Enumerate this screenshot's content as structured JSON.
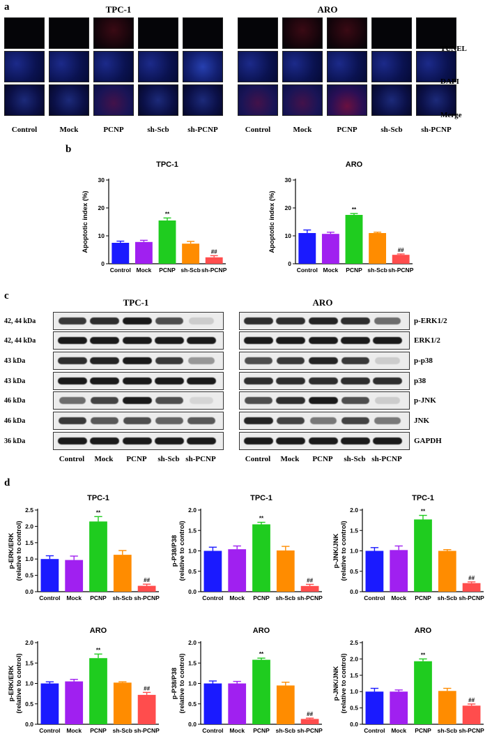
{
  "panel_a": {
    "letter": "a",
    "groups": [
      {
        "title": "TPC-1"
      },
      {
        "title": "ARO"
      }
    ],
    "rows": [
      "TUNEL",
      "DAPI",
      "Merge"
    ],
    "columns": [
      "Control",
      "Mock",
      "PCNP",
      "sh-Scb",
      "sh-PCNP"
    ]
  },
  "panel_b_letter": "b",
  "panel_c": {
    "letter": "c",
    "groups": [
      {
        "title": "TPC-1"
      },
      {
        "title": "ARO"
      }
    ],
    "sizes": [
      "42, 44 kDa",
      "42, 44 kDa",
      "43 kDa",
      "43 kDa",
      "46 kDa",
      "46 kDa",
      "36 kDa"
    ],
    "proteins": [
      "p-ERK1/2",
      "ERK1/2",
      "p-p38",
      "p38",
      "p-JNK",
      "JNK",
      "GAPDH"
    ],
    "columns": [
      "Control",
      "Mock",
      "PCNP",
      "sh-Scb",
      "sh-PCNP"
    ],
    "band_intensity": {
      "TPC-1": [
        [
          0.85,
          0.9,
          1.0,
          0.75,
          0.15
        ],
        [
          1,
          1,
          1,
          1,
          1
        ],
        [
          0.9,
          0.95,
          1.0,
          0.85,
          0.4
        ],
        [
          1,
          1,
          1,
          1,
          1
        ],
        [
          0.6,
          0.8,
          1.0,
          0.75,
          0.1
        ],
        [
          0.85,
          0.7,
          0.75,
          0.65,
          0.7
        ],
        [
          1,
          1,
          1,
          1,
          1
        ]
      ],
      "ARO": [
        [
          0.9,
          0.9,
          0.95,
          0.9,
          0.6
        ],
        [
          1,
          1,
          1,
          1,
          1
        ],
        [
          0.75,
          0.85,
          0.95,
          0.85,
          0.15
        ],
        [
          0.9,
          0.9,
          0.9,
          0.9,
          0.9
        ],
        [
          0.75,
          0.9,
          1.0,
          0.75,
          0.15
        ],
        [
          0.95,
          0.8,
          0.55,
          0.8,
          0.55
        ],
        [
          1,
          1,
          1,
          1,
          1
        ]
      ]
    }
  },
  "panel_d_letter": "d",
  "colors": {
    "Control": "#1a1aff",
    "Mock": "#a020f0",
    "PCNP": "#1fcc1f",
    "sh-Scb": "#ff8c00",
    "sh-PCNP": "#ff4d4d"
  },
  "chart_data": [
    {
      "type": "bar",
      "title": "TPC-1",
      "ylabel": "Apoptotic index (%)",
      "categories": [
        "Control",
        "Mock",
        "PCNP",
        "sh-Scb",
        "sh-PCNP"
      ],
      "values": [
        7.5,
        7.8,
        15.5,
        7.2,
        2.3
      ],
      "errors": [
        0.6,
        0.6,
        0.9,
        0.8,
        0.6
      ],
      "annotations": [
        "",
        "",
        "**",
        "",
        "##"
      ],
      "ylim": [
        0,
        30
      ],
      "yticks": [
        "0",
        "10",
        "20",
        "30"
      ]
    },
    {
      "type": "bar",
      "title": "ARO",
      "ylabel": "Apoptotic index (%)",
      "categories": [
        "Control",
        "Mock",
        "PCNP",
        "sh-Scb",
        "sh-PCNP"
      ],
      "values": [
        11.0,
        10.7,
        17.5,
        11.0,
        3.2
      ],
      "errors": [
        1.1,
        0.6,
        0.5,
        0.3,
        0.3
      ],
      "annotations": [
        "",
        "",
        "**",
        "",
        "##"
      ],
      "ylim": [
        0,
        30
      ],
      "yticks": [
        "0",
        "10",
        "20",
        "30"
      ]
    },
    {
      "type": "bar",
      "title": "TPC-1",
      "ylabel": "p-ERK/ERK (relative to control)",
      "categories": [
        "Control",
        "Mock",
        "PCNP",
        "sh-Scb",
        "sh-PCNP"
      ],
      "values": [
        1.0,
        0.97,
        2.15,
        1.13,
        0.18
      ],
      "errors": [
        0.1,
        0.12,
        0.15,
        0.13,
        0.05
      ],
      "annotations": [
        "",
        "",
        "**",
        "",
        "##"
      ],
      "ylim": [
        0,
        2.5
      ],
      "yticks": [
        "0.0",
        "0.5",
        "1.0",
        "1.5",
        "2.0",
        "2.5"
      ]
    },
    {
      "type": "bar",
      "title": "TPC-1",
      "ylabel": "p-P38/P38 (relative to control)",
      "categories": [
        "Control",
        "Mock",
        "PCNP",
        "sh-Scb",
        "sh-PCNP"
      ],
      "values": [
        1.0,
        1.04,
        1.65,
        1.01,
        0.14
      ],
      "errors": [
        0.09,
        0.08,
        0.05,
        0.1,
        0.04
      ],
      "annotations": [
        "",
        "",
        "**",
        "",
        "##"
      ],
      "ylim": [
        0,
        2.0
      ],
      "yticks": [
        "0.0",
        "0.5",
        "1.0",
        "1.5",
        "2.0"
      ]
    },
    {
      "type": "bar",
      "title": "TPC-1",
      "ylabel": "p-JNK/JNK (relative to control)",
      "categories": [
        "Control",
        "Mock",
        "PCNP",
        "sh-Scb",
        "sh-PCNP"
      ],
      "values": [
        1.0,
        1.02,
        1.77,
        1.0,
        0.21
      ],
      "errors": [
        0.08,
        0.1,
        0.1,
        0.03,
        0.03
      ],
      "annotations": [
        "",
        "",
        "**",
        "",
        "##"
      ],
      "ylim": [
        0,
        2.0
      ],
      "yticks": [
        "0.0",
        "0.5",
        "1.0",
        "1.5",
        "2.0"
      ]
    },
    {
      "type": "bar",
      "title": "ARO",
      "ylabel": "p-ERK/ERK (relative to control)",
      "categories": [
        "Control",
        "Mock",
        "PCNP",
        "sh-Scb",
        "sh-PCNP"
      ],
      "values": [
        1.0,
        1.05,
        1.62,
        1.02,
        0.72
      ],
      "errors": [
        0.04,
        0.05,
        0.1,
        0.02,
        0.06
      ],
      "annotations": [
        "",
        "",
        "**",
        "",
        "##"
      ],
      "ylim": [
        0,
        2.0
      ],
      "yticks": [
        "0.0",
        "0.5",
        "1.0",
        "1.5",
        "2.0"
      ]
    },
    {
      "type": "bar",
      "title": "ARO",
      "ylabel": "p-P38/P38 (relative to control)",
      "categories": [
        "Control",
        "Mock",
        "PCNP",
        "sh-Scb",
        "sh-PCNP"
      ],
      "values": [
        1.0,
        1.0,
        1.58,
        0.95,
        0.13
      ],
      "errors": [
        0.06,
        0.05,
        0.04,
        0.08,
        0.02
      ],
      "annotations": [
        "",
        "",
        "**",
        "",
        "##"
      ],
      "ylim": [
        0,
        2.0
      ],
      "yticks": [
        "0.0",
        "0.5",
        "1.0",
        "1.5",
        "2.0"
      ]
    },
    {
      "type": "bar",
      "title": "ARO",
      "ylabel": "p-JNK/JNK (relative to control)",
      "categories": [
        "Control",
        "Mock",
        "PCNP",
        "sh-Scb",
        "sh-PCNP"
      ],
      "values": [
        1.0,
        1.0,
        1.93,
        1.02,
        0.57
      ],
      "errors": [
        0.1,
        0.05,
        0.07,
        0.08,
        0.05
      ],
      "annotations": [
        "",
        "",
        "**",
        "",
        "##"
      ],
      "ylim": [
        0,
        2.5
      ],
      "yticks": [
        "0.0",
        "0.5",
        "1.0",
        "1.5",
        "2.0",
        "2.5"
      ]
    }
  ]
}
